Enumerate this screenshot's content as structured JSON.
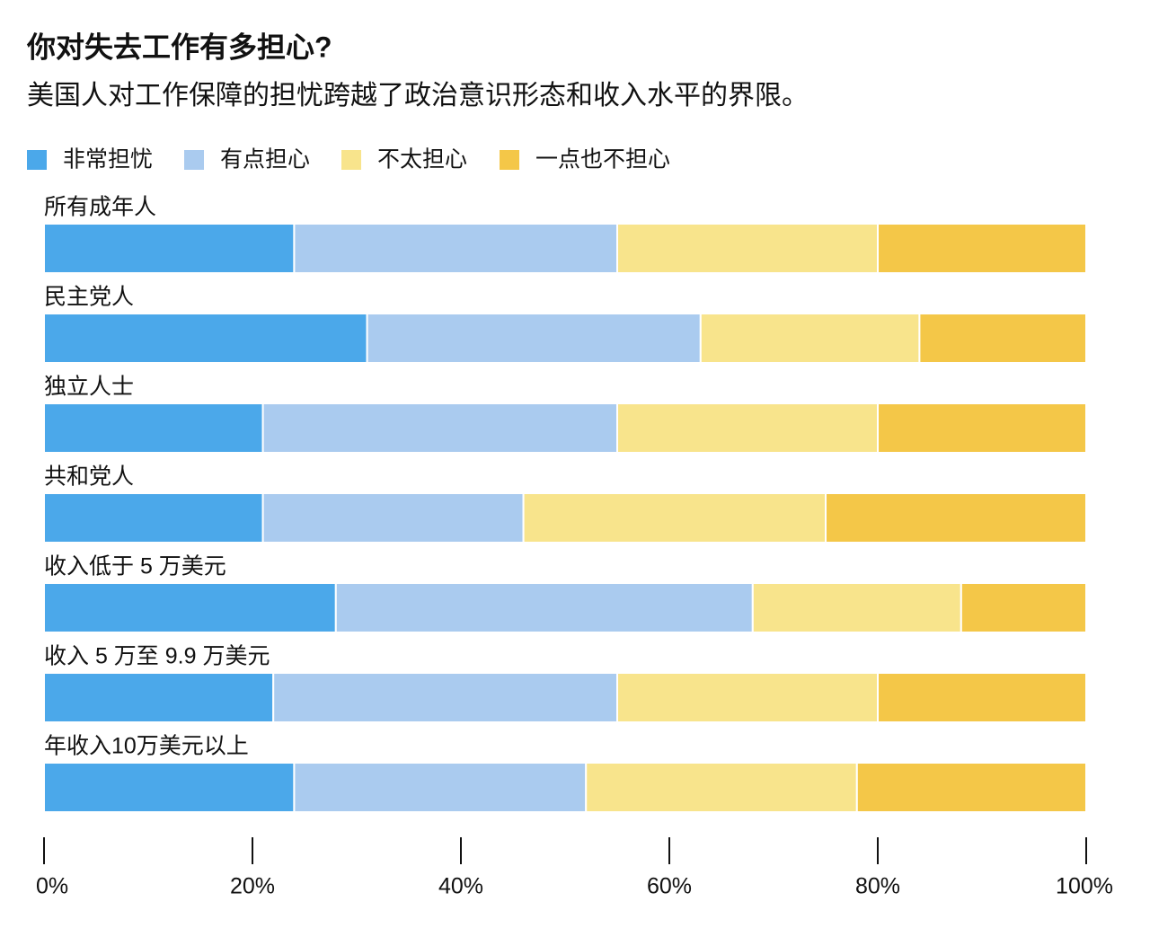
{
  "chart_data": {
    "type": "stacked-bar-horizontal",
    "title": "你对失去工作有多担心?",
    "subtitle": "美国人对工作保障的担忧跨越了政治意识形态和收入水平的界限。",
    "categories": [
      "所有成年人",
      "民主党人",
      "独立人士",
      "共和党人",
      "收入低于 5 万美元",
      "收入 5 万至 9.9 万美元",
      "年收入10万美元以上"
    ],
    "series": [
      {
        "name": "非常担忧",
        "color": "#4ba8ea",
        "values": [
          24,
          31,
          21,
          21,
          28,
          22,
          24
        ]
      },
      {
        "name": "有点担心",
        "color": "#aacbef",
        "values": [
          31,
          32,
          34,
          25,
          40,
          33,
          28
        ]
      },
      {
        "name": "不太担心",
        "color": "#f8e48c",
        "values": [
          25,
          21,
          25,
          29,
          20,
          25,
          26
        ]
      },
      {
        "name": "一点也不担心",
        "color": "#f4c748",
        "values": [
          20,
          16,
          20,
          25,
          12,
          20,
          22
        ]
      }
    ],
    "xlim": [
      0,
      100
    ],
    "xticks": [
      {
        "value": 0,
        "label": "0%"
      },
      {
        "value": 20,
        "label": "20%"
      },
      {
        "value": 40,
        "label": "40%"
      },
      {
        "value": 60,
        "label": "60%"
      },
      {
        "value": 80,
        "label": "80%"
      },
      {
        "value": 100,
        "label": "100%"
      }
    ],
    "legend": "top-left"
  }
}
